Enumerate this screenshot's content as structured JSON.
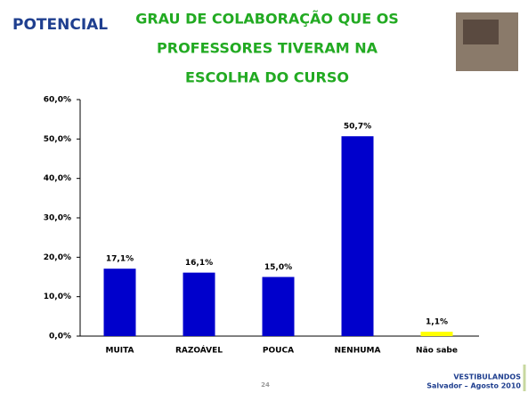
{
  "header": {
    "logo": "POTENCIAL",
    "title_lines": [
      "GRAU DE COLABORAÇÃO QUE OS",
      "PROFESSORES TIVERAM NA",
      "ESCOLHA DO CURSO"
    ]
  },
  "chart_data": {
    "type": "bar",
    "categories": [
      "MUITA",
      "RAZOÁVEL",
      "POUCA",
      "NENHUMA",
      "Não sabe"
    ],
    "values": [
      17.1,
      16.1,
      15.0,
      50.7,
      1.1
    ],
    "value_labels": [
      "17,1%",
      "16,1%",
      "15,0%",
      "50,7%",
      "1,1%"
    ],
    "colors": [
      "#0000cc",
      "#0000cc",
      "#0000cc",
      "#0000cc",
      "#ffff00"
    ],
    "ylim": [
      0,
      60
    ],
    "yticks": [
      {
        "value": 0,
        "label": "0,0%"
      },
      {
        "value": 10,
        "label": "10,0%"
      },
      {
        "value": 20,
        "label": "20,0%"
      },
      {
        "value": 30,
        "label": "30,0%"
      },
      {
        "value": 40,
        "label": "40,0%"
      },
      {
        "value": 50,
        "label": "50,0%"
      },
      {
        "value": 60,
        "label": "60,0%"
      }
    ],
    "grid": false
  },
  "footer": {
    "page": "24",
    "line1": "VESTIBULANDOS",
    "line2": "Salvador – Agosto 2010"
  }
}
